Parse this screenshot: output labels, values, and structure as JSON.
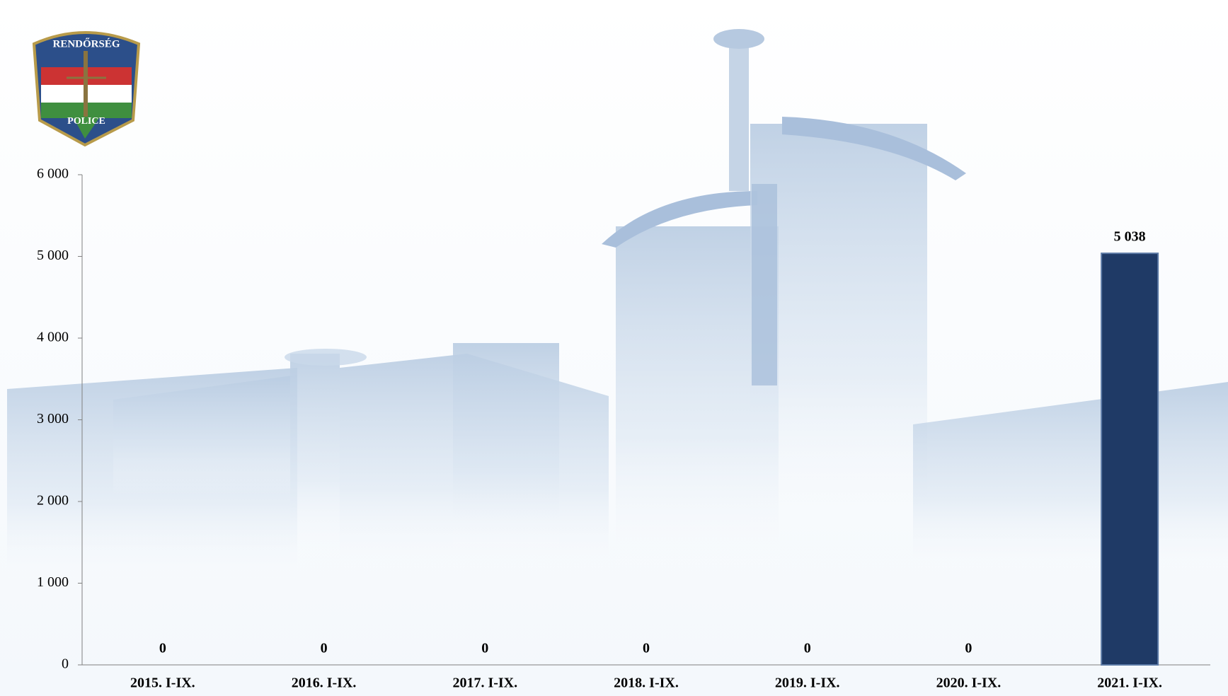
{
  "logo": {
    "top": "RENDŐRSÉG",
    "bottom": "POLICE"
  },
  "chart_data": {
    "type": "bar",
    "categories": [
      "2015. I-IX.",
      "2016. I-IX.",
      "2017. I-IX.",
      "2018. I-IX.",
      "2019. I-IX.",
      "2020. I-IX.",
      "2021. I-IX."
    ],
    "values": [
      0,
      0,
      0,
      0,
      0,
      0,
      5038
    ],
    "value_labels": [
      "0",
      "0",
      "0",
      "0",
      "0",
      "0",
      "5 038"
    ],
    "color": "#1f3a66",
    "ylim": [
      0,
      6000
    ],
    "yticks": [
      0,
      {
        "value": 1000,
        "label": "1 000"
      },
      {
        "value": 2000,
        "label": "2 000"
      },
      {
        "value": 3000,
        "label": "3 000"
      },
      {
        "value": 4000,
        "label": "4 000"
      },
      {
        "value": 5000,
        "label": "5 000"
      },
      {
        "value": 6000,
        "label": "6 000"
      }
    ],
    "grid": false
  }
}
